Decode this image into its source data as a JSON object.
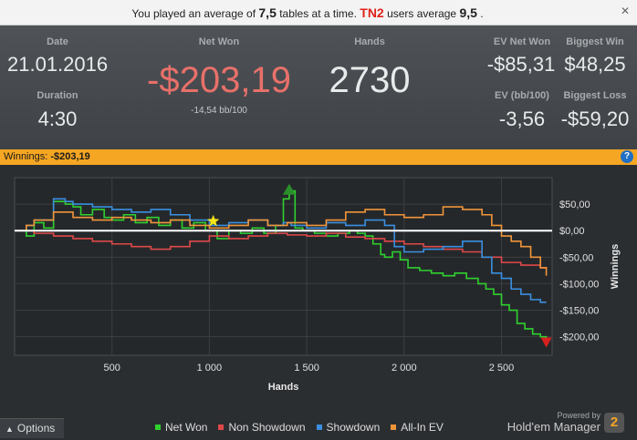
{
  "banner": {
    "prefix": "You played an average of",
    "avg_tables": "7,5",
    "middle": "tables at a time.",
    "group": "TN2",
    "suffix": "users average",
    "group_avg": "9,5",
    "end": ".",
    "close_icon": "close-icon"
  },
  "stats": {
    "date_label": "Date",
    "date_value": "21.01.2016",
    "duration_label": "Duration",
    "duration_value": "4:30",
    "netwon_label": "Net Won",
    "netwon_value": "-$203,19",
    "netwon_sub": "-14,54 bb/100",
    "hands_label": "Hands",
    "hands_value": "2730",
    "evnet_label": "EV Net Won",
    "evnet_value": "-$85,31",
    "bigwin_label": "Biggest Win",
    "bigwin_value": "$48,25",
    "evbb_label": "EV (bb/100)",
    "evbb_value": "-3,56",
    "bigloss_label": "Biggest Loss",
    "bigloss_value": "-$59,20",
    "netwon_color": "#e8706a"
  },
  "winbar": {
    "label": "Winnings:",
    "value": "-$203,19",
    "help_icon": "help-icon",
    "color": "#f5a623"
  },
  "chart_data": {
    "type": "line",
    "xlabel": "Hands",
    "ylabel": "Winnings",
    "xlim": [
      0,
      2760
    ],
    "ylim": [
      -235,
      100
    ],
    "x_ticks": [
      500,
      1000,
      1500,
      2000,
      2500
    ],
    "x_tick_labels": [
      "500",
      "1 000",
      "1 500",
      "2 000",
      "2 500"
    ],
    "y_ticks": [
      50,
      0,
      -50,
      -100,
      -150,
      -200
    ],
    "y_tick_labels": [
      "$50,00",
      "$0,00",
      "-$50,00",
      "-$100,00",
      "-$150,00",
      "-$200,00"
    ],
    "grid": true,
    "zero_line": true,
    "series": [
      {
        "name": "Net Won",
        "color": "#2fd12f",
        "x": [
          0,
          60,
          100,
          150,
          200,
          260,
          300,
          340,
          400,
          460,
          500,
          560,
          620,
          680,
          740,
          800,
          860,
          920,
          980,
          1040,
          1100,
          1160,
          1220,
          1280,
          1340,
          1380,
          1410,
          1440,
          1480,
          1540,
          1600,
          1660,
          1720,
          1760,
          1800,
          1840,
          1880,
          1900,
          1940,
          1980,
          2020,
          2080,
          2140,
          2200,
          2260,
          2320,
          2380,
          2420,
          2460,
          2500,
          2540,
          2580,
          2620,
          2660,
          2700,
          2730
        ],
        "y": [
          0,
          -10,
          15,
          5,
          55,
          50,
          45,
          30,
          40,
          25,
          20,
          30,
          15,
          25,
          10,
          20,
          5,
          15,
          0,
          -15,
          0,
          -5,
          5,
          -5,
          10,
          60,
          75,
          5,
          0,
          -5,
          -10,
          -5,
          0,
          -5,
          -10,
          -25,
          -45,
          -50,
          -40,
          -55,
          -70,
          -75,
          -80,
          -85,
          -80,
          -90,
          -100,
          -110,
          -120,
          -140,
          -150,
          -175,
          -185,
          -195,
          -200,
          -203
        ]
      },
      {
        "name": "Non Showdown",
        "color": "#e04848",
        "x": [
          0,
          100,
          200,
          300,
          400,
          500,
          600,
          700,
          800,
          900,
          1000,
          1100,
          1200,
          1300,
          1400,
          1500,
          1600,
          1700,
          1800,
          1900,
          2000,
          2100,
          2200,
          2300,
          2400,
          2500,
          2600,
          2700,
          2730
        ],
        "y": [
          0,
          -5,
          -10,
          -15,
          -20,
          -25,
          -30,
          -35,
          -30,
          -20,
          -10,
          -15,
          -10,
          -5,
          -8,
          -10,
          -5,
          -12,
          -15,
          -20,
          -25,
          -30,
          -35,
          -40,
          -50,
          -60,
          -65,
          -70,
          -72
        ]
      },
      {
        "name": "Showdown",
        "color": "#3a8fe0",
        "x": [
          0,
          60,
          100,
          200,
          260,
          300,
          400,
          500,
          600,
          700,
          800,
          900,
          1000,
          1100,
          1200,
          1300,
          1380,
          1420,
          1500,
          1600,
          1700,
          1800,
          1900,
          1950,
          2000,
          2100,
          2200,
          2300,
          2400,
          2450,
          2500,
          2550,
          2600,
          2650,
          2700,
          2730
        ],
        "y": [
          0,
          10,
          20,
          60,
          55,
          50,
          45,
          40,
          35,
          40,
          30,
          20,
          10,
          15,
          20,
          10,
          15,
          10,
          5,
          15,
          10,
          20,
          10,
          -30,
          -40,
          -35,
          -30,
          -20,
          -50,
          -80,
          -90,
          -110,
          -120,
          -130,
          -135,
          -135
        ]
      },
      {
        "name": "All-In EV",
        "color": "#f0953a",
        "x": [
          0,
          60,
          100,
          200,
          300,
          400,
          500,
          600,
          700,
          800,
          900,
          1000,
          1100,
          1200,
          1300,
          1400,
          1500,
          1600,
          1700,
          1800,
          1900,
          2000,
          2100,
          2200,
          2300,
          2400,
          2450,
          2500,
          2550,
          2600,
          2650,
          2700,
          2730
        ],
        "y": [
          0,
          10,
          20,
          35,
          25,
          20,
          25,
          20,
          15,
          20,
          10,
          5,
          10,
          20,
          10,
          15,
          10,
          20,
          35,
          40,
          30,
          25,
          30,
          45,
          40,
          30,
          10,
          -10,
          -20,
          -30,
          -50,
          -70,
          -85
        ]
      }
    ],
    "markers": [
      {
        "name": "star",
        "x": 1020,
        "y": 18,
        "color": "#f5e31a"
      },
      {
        "name": "biggest-win",
        "x": 1410,
        "y": 78,
        "color": "#2a8f2a"
      },
      {
        "name": "biggest-loss",
        "x": 2730,
        "y": -210,
        "color": "#d92020"
      }
    ]
  },
  "legend": {
    "items": [
      {
        "label": "Net Won",
        "color": "#2fd12f"
      },
      {
        "label": "Non Showdown",
        "color": "#e04848"
      },
      {
        "label": "Showdown",
        "color": "#3a8fe0"
      },
      {
        "label": "All-In EV",
        "color": "#f0953a"
      }
    ]
  },
  "bottom": {
    "options_label": "Options",
    "options_icon": "chevron-up-icon",
    "powered_by": "Powered by",
    "brand": "Hold'em Manager",
    "brand_icon_text": "2"
  }
}
